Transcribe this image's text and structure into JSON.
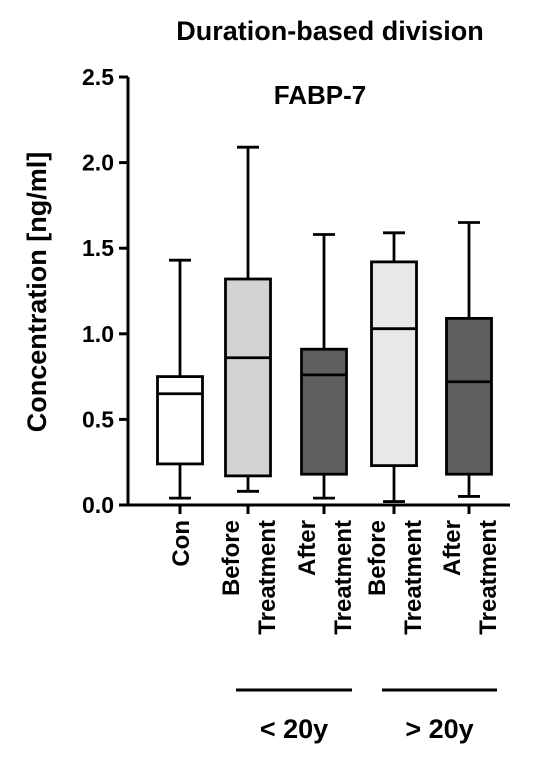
{
  "chart_data": {
    "type": "box",
    "title": "Duration-based division",
    "subtitle": "FABP-7",
    "ylabel": "Concentration [ng/ml]",
    "ylim": [
      0,
      2.5
    ],
    "yticks": [
      0.0,
      0.5,
      1.0,
      1.5,
      2.0,
      2.5
    ],
    "ytick_labels": [
      "0.0",
      "0.5",
      "1.0",
      "1.5",
      "2.0",
      "2.5"
    ],
    "categories": [
      {
        "lines": [
          "Con"
        ],
        "fill": "#ffffff",
        "min": 0.04,
        "q1": 0.24,
        "median": 0.65,
        "q3": 0.75,
        "max": 1.43
      },
      {
        "lines": [
          "Before",
          "Treatment"
        ],
        "fill": "#d3d3d3",
        "min": 0.08,
        "q1": 0.17,
        "median": 0.86,
        "q3": 1.32,
        "max": 2.09
      },
      {
        "lines": [
          "After",
          "Treatment"
        ],
        "fill": "#5f5f5f",
        "min": 0.04,
        "q1": 0.18,
        "median": 0.76,
        "q3": 0.91,
        "max": 1.58
      },
      {
        "lines": [
          "Before",
          "Treatment"
        ],
        "fill": "#e8e8e8",
        "min": 0.02,
        "q1": 0.23,
        "median": 1.03,
        "q3": 1.42,
        "max": 1.59
      },
      {
        "lines": [
          "After",
          "Treatment"
        ],
        "fill": "#5f5f5f",
        "min": 0.05,
        "q1": 0.18,
        "median": 0.72,
        "q3": 1.09,
        "max": 1.65
      }
    ],
    "groups": [
      {
        "label": "< 20y",
        "from": 1,
        "to": 2
      },
      {
        "label": "> 20y",
        "from": 3,
        "to": 4
      }
    ],
    "grid": false,
    "legend": "none"
  }
}
